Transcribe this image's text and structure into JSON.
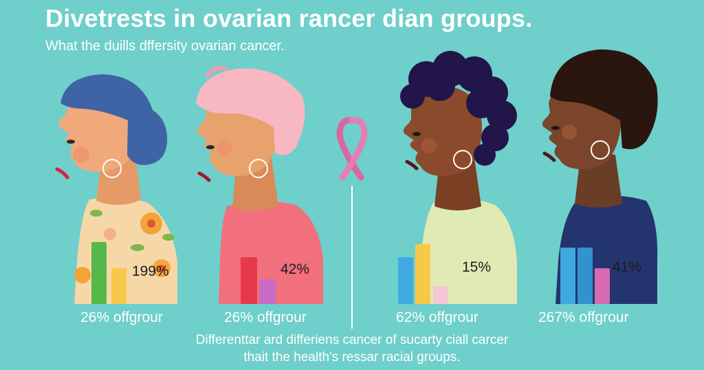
{
  "title": "Divetrests in ovarian rancer dian groups.",
  "subtitle": "What the duills dffersity ovarian cancer.",
  "panels": [
    {
      "percent": "199%",
      "label": "26% offgrour"
    },
    {
      "percent": "42%",
      "label": "26% offgrour"
    },
    {
      "percent": "15%",
      "label": "62% offgrour"
    },
    {
      "percent": "41%",
      "label": "267% offgrour"
    }
  ],
  "caption": {
    "line1": "Differenttar ard differiens cancer of sucarty ciall carcer",
    "line2": "thait the health's ressar racial groups."
  },
  "colors": {
    "background": "#6fcfca",
    "ribbon": "#d8679f",
    "text": "#ffffff"
  }
}
